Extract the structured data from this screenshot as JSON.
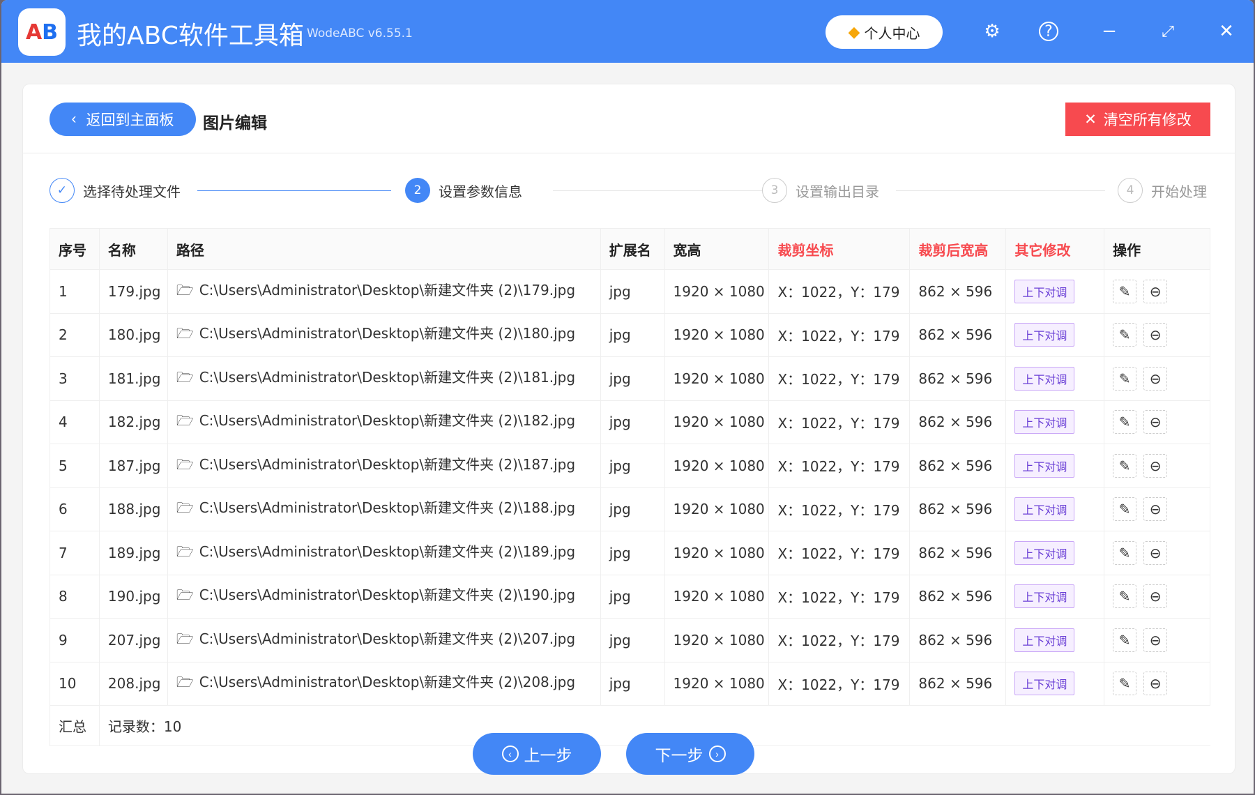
{
  "app": {
    "title": "我的ABC软件工具箱",
    "version": "WodeABC v6.55.1",
    "logo_text": "AB",
    "user_center": "个人中心"
  },
  "colors": {
    "primary": "#4387f6",
    "danger": "#f74a4f",
    "tag": "#6a3fd6"
  },
  "header": {
    "back_label": "返回到主面板",
    "page_title": "图片编辑",
    "clear_label": "清空所有修改"
  },
  "steps": [
    {
      "num": "✓",
      "label": "选择待处理文件",
      "state": "done"
    },
    {
      "num": "2",
      "label": "设置参数信息",
      "state": "active"
    },
    {
      "num": "3",
      "label": "设置输出目录",
      "state": "pending"
    },
    {
      "num": "4",
      "label": "开始处理",
      "state": "pending"
    }
  ],
  "table": {
    "columns": [
      "序号",
      "名称",
      "路径",
      "扩展名",
      "宽高",
      "裁剪坐标",
      "裁剪后宽高",
      "其它修改",
      "操作"
    ],
    "rows": [
      {
        "no": "1",
        "name": "179.jpg",
        "path": "C:\\Users\\Administrator\\Desktop\\新建文件夹 (2)\\179.jpg",
        "ext": "jpg",
        "size": "1920 × 1080",
        "crop": "X：1022，Y：179",
        "crop_size": "862 × 596",
        "other": "上下对调"
      },
      {
        "no": "2",
        "name": "180.jpg",
        "path": "C:\\Users\\Administrator\\Desktop\\新建文件夹 (2)\\180.jpg",
        "ext": "jpg",
        "size": "1920 × 1080",
        "crop": "X：1022，Y：179",
        "crop_size": "862 × 596",
        "other": "上下对调"
      },
      {
        "no": "3",
        "name": "181.jpg",
        "path": "C:\\Users\\Administrator\\Desktop\\新建文件夹 (2)\\181.jpg",
        "ext": "jpg",
        "size": "1920 × 1080",
        "crop": "X：1022，Y：179",
        "crop_size": "862 × 596",
        "other": "上下对调"
      },
      {
        "no": "4",
        "name": "182.jpg",
        "path": "C:\\Users\\Administrator\\Desktop\\新建文件夹 (2)\\182.jpg",
        "ext": "jpg",
        "size": "1920 × 1080",
        "crop": "X：1022，Y：179",
        "crop_size": "862 × 596",
        "other": "上下对调"
      },
      {
        "no": "5",
        "name": "187.jpg",
        "path": "C:\\Users\\Administrator\\Desktop\\新建文件夹 (2)\\187.jpg",
        "ext": "jpg",
        "size": "1920 × 1080",
        "crop": "X：1022，Y：179",
        "crop_size": "862 × 596",
        "other": "上下对调"
      },
      {
        "no": "6",
        "name": "188.jpg",
        "path": "C:\\Users\\Administrator\\Desktop\\新建文件夹 (2)\\188.jpg",
        "ext": "jpg",
        "size": "1920 × 1080",
        "crop": "X：1022，Y：179",
        "crop_size": "862 × 596",
        "other": "上下对调"
      },
      {
        "no": "7",
        "name": "189.jpg",
        "path": "C:\\Users\\Administrator\\Desktop\\新建文件夹 (2)\\189.jpg",
        "ext": "jpg",
        "size": "1920 × 1080",
        "crop": "X：1022，Y：179",
        "crop_size": "862 × 596",
        "other": "上下对调"
      },
      {
        "no": "8",
        "name": "190.jpg",
        "path": "C:\\Users\\Administrator\\Desktop\\新建文件夹 (2)\\190.jpg",
        "ext": "jpg",
        "size": "1920 × 1080",
        "crop": "X：1022，Y：179",
        "crop_size": "862 × 596",
        "other": "上下对调"
      },
      {
        "no": "9",
        "name": "207.jpg",
        "path": "C:\\Users\\Administrator\\Desktop\\新建文件夹 (2)\\207.jpg",
        "ext": "jpg",
        "size": "1920 × 1080",
        "crop": "X：1022，Y：179",
        "crop_size": "862 × 596",
        "other": "上下对调"
      },
      {
        "no": "10",
        "name": "208.jpg",
        "path": "C:\\Users\\Administrator\\Desktop\\新建文件夹 (2)\\208.jpg",
        "ext": "jpg",
        "size": "1920 × 1080",
        "crop": "X：1022，Y：179",
        "crop_size": "862 × 596",
        "other": "上下对调"
      }
    ],
    "summary_label": "汇总",
    "record_count": "记录数：10"
  },
  "footer": {
    "prev": "上一步",
    "next": "下一步"
  }
}
